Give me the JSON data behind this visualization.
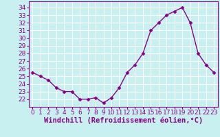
{
  "x": [
    0,
    1,
    2,
    3,
    4,
    5,
    6,
    7,
    8,
    9,
    10,
    11,
    12,
    13,
    14,
    15,
    16,
    17,
    18,
    19,
    20,
    21,
    22,
    23
  ],
  "y": [
    25.5,
    25.0,
    24.5,
    23.5,
    23.0,
    23.0,
    22.0,
    22.0,
    22.2,
    21.5,
    22.2,
    23.5,
    25.5,
    26.5,
    28.0,
    31.0,
    32.0,
    33.0,
    33.5,
    34.0,
    32.0,
    28.0,
    26.5,
    25.5
  ],
  "ylim": [
    21.0,
    34.8
  ],
  "yticks": [
    22,
    23,
    24,
    25,
    26,
    27,
    28,
    29,
    30,
    31,
    32,
    33,
    34
  ],
  "xticks": [
    0,
    1,
    2,
    3,
    4,
    5,
    6,
    7,
    8,
    9,
    10,
    11,
    12,
    13,
    14,
    15,
    16,
    17,
    18,
    19,
    20,
    21,
    22,
    23
  ],
  "xlabel": "Windchill (Refroidissement éolien,°C)",
  "line_color": "#880088",
  "marker": "D",
  "marker_size": 2.5,
  "line_width": 1.0,
  "bg_color": "#c8f0f0",
  "grid_color": "#ffffff",
  "tick_label_size": 6.5,
  "xlabel_size": 7.5
}
